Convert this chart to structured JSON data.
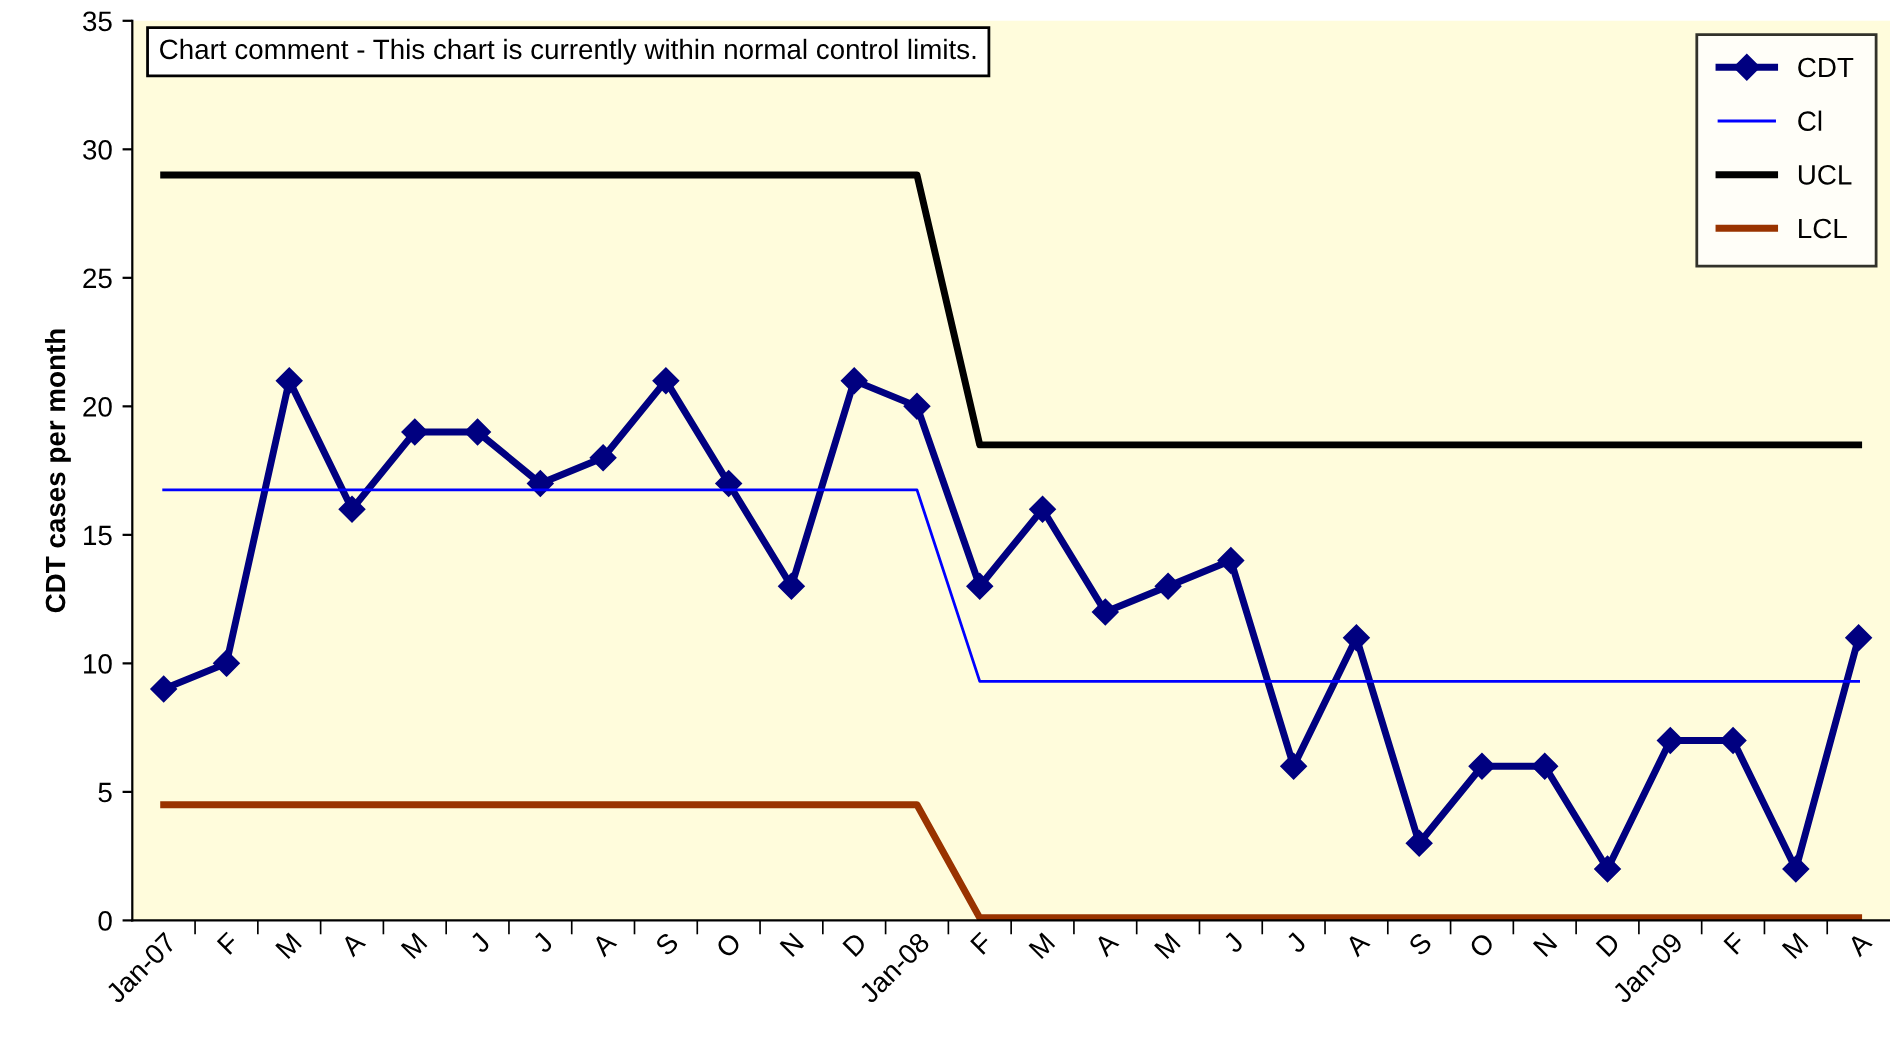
{
  "chart_data": {
    "type": "line",
    "ylabel": "CDT cases per month",
    "categories": [
      "Jan-07",
      "F",
      "M",
      "A",
      "M",
      "J",
      "J",
      "A",
      "S",
      "O",
      "N",
      "D",
      "Jan-08",
      "F",
      "M",
      "A",
      "M",
      "J",
      "J",
      "A",
      "S",
      "O",
      "N",
      "D",
      "Jan-09",
      "F",
      "M",
      "A"
    ],
    "series": [
      {
        "name": "CDT",
        "color": "#000080",
        "marker": "diamond",
        "values": [
          9,
          10,
          21,
          16,
          19,
          19,
          17,
          18,
          21,
          17,
          13,
          21,
          20,
          13,
          16,
          12,
          13,
          14,
          6,
          11,
          3,
          6,
          6,
          2,
          7,
          7,
          2,
          11
        ]
      },
      {
        "name": "Cl",
        "color": "#0000ff",
        "marker": "none",
        "values": [
          16.75,
          16.75,
          16.75,
          16.75,
          16.75,
          16.75,
          16.75,
          16.75,
          16.75,
          16.75,
          16.75,
          16.75,
          16.75,
          9.3,
          9.3,
          9.3,
          9.3,
          9.3,
          9.3,
          9.3,
          9.3,
          9.3,
          9.3,
          9.3,
          9.3,
          9.3,
          9.3,
          9.3
        ]
      },
      {
        "name": "UCL",
        "color": "#000000",
        "marker": "none",
        "values": [
          29,
          29,
          29,
          29,
          29,
          29,
          29,
          29,
          29,
          29,
          29,
          29,
          29,
          18.5,
          18.5,
          18.5,
          18.5,
          18.5,
          18.5,
          18.5,
          18.5,
          18.5,
          18.5,
          18.5,
          18.5,
          18.5,
          18.5,
          18.5
        ]
      },
      {
        "name": "LCL",
        "color": "#993300",
        "marker": "none",
        "values": [
          4.5,
          4.5,
          4.5,
          4.5,
          4.5,
          4.5,
          4.5,
          4.5,
          4.5,
          4.5,
          4.5,
          4.5,
          4.5,
          0.1,
          0.1,
          0.1,
          0.1,
          0.1,
          0.1,
          0.1,
          0.1,
          0.1,
          0.1,
          0.1,
          0.1,
          0.1,
          0.1,
          0.1
        ]
      }
    ],
    "ylim": [
      0,
      35
    ],
    "yticks": [
      0,
      5,
      10,
      15,
      20,
      25,
      30,
      35
    ],
    "annotations": [
      "Chart comment - This chart is currently within normal control limits."
    ],
    "legend": "top right",
    "grid": false
  }
}
